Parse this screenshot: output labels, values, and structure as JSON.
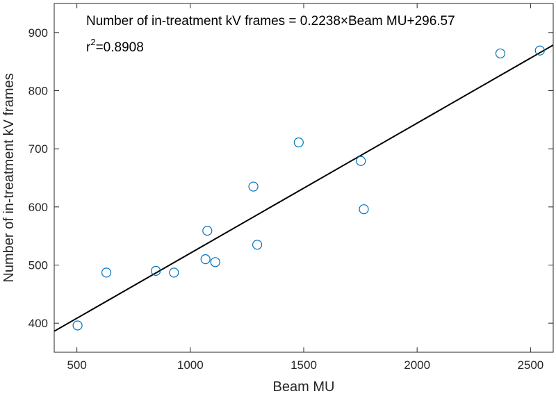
{
  "chart_data": {
    "type": "scatter",
    "title": "",
    "xlabel": "Beam MU",
    "ylabel": "Number of in-treatment kV frames",
    "xlim": [
      400,
      2600
    ],
    "ylim": [
      350,
      950
    ],
    "xticks": [
      500,
      1000,
      1500,
      2000,
      2500
    ],
    "yticks": [
      400,
      500,
      600,
      700,
      800,
      900
    ],
    "grid": false,
    "legend": "none",
    "marker_color": "#0072BD",
    "fit_line_color": "#000000",
    "points": [
      {
        "x": 503,
        "y": 396
      },
      {
        "x": 630,
        "y": 487
      },
      {
        "x": 848,
        "y": 490
      },
      {
        "x": 928,
        "y": 487
      },
      {
        "x": 1067,
        "y": 510
      },
      {
        "x": 1075,
        "y": 559
      },
      {
        "x": 1110,
        "y": 505
      },
      {
        "x": 1278,
        "y": 635
      },
      {
        "x": 1295,
        "y": 535
      },
      {
        "x": 1478,
        "y": 711
      },
      {
        "x": 1752,
        "y": 679
      },
      {
        "x": 1765,
        "y": 596
      },
      {
        "x": 2367,
        "y": 864
      },
      {
        "x": 2541,
        "y": 869
      }
    ],
    "fit": {
      "slope": 0.2238,
      "intercept": 296.57
    },
    "annotations": {
      "equation": "Number of in-treatment kV frames = 0.2238×Beam MU+296.57",
      "r2_prefix": "r",
      "r2_sup": "2",
      "r2_value": "=0.8908"
    }
  }
}
